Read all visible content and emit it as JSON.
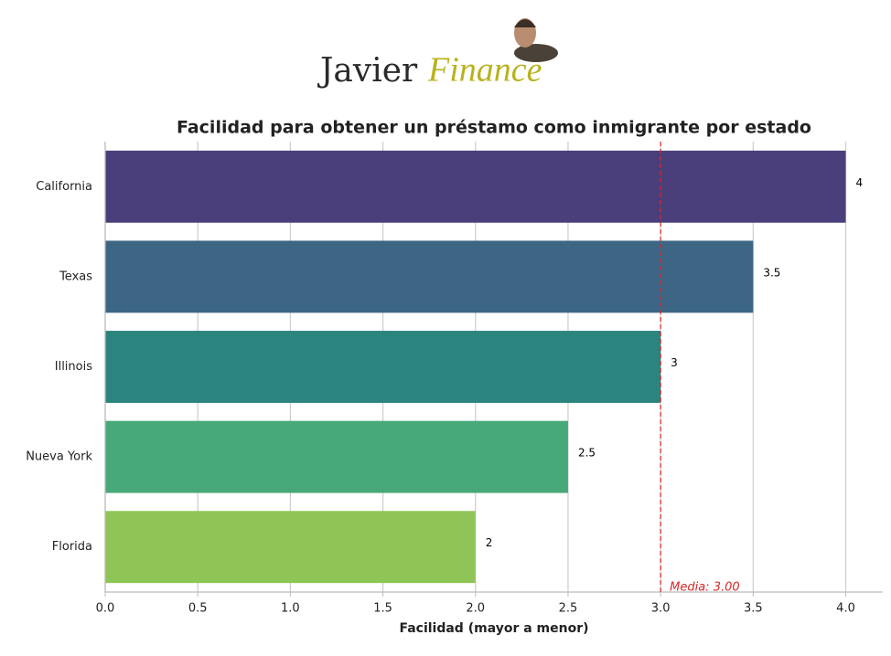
{
  "logo": {
    "first": "Javier",
    "second": "Finance"
  },
  "chart_data": {
    "type": "barh",
    "title": "Facilidad para obtener un préstamo como inmigrante por estado",
    "x_label": "Facilidad (mayor a menor)",
    "categories": [
      "California",
      "Texas",
      "Illinois",
      "Nueva York",
      "Florida"
    ],
    "values": [
      4,
      3.5,
      3,
      2.5,
      2
    ],
    "colors": [
      "#4a3f7b",
      "#3d6685",
      "#2c847e",
      "#47a978",
      "#8fc557"
    ],
    "xlim": [
      0,
      4.2
    ],
    "xticks": [
      {
        "value": 0,
        "label": "0.0"
      },
      {
        "value": 0.5,
        "label": "0.5"
      },
      {
        "value": 1,
        "label": "1.0"
      },
      {
        "value": 1.5,
        "label": "1.5"
      },
      {
        "value": 2,
        "label": "2.0"
      },
      {
        "value": 2.5,
        "label": "2.5"
      },
      {
        "value": 3,
        "label": "3.0"
      },
      {
        "value": 3.5,
        "label": "3.5"
      },
      {
        "value": 4,
        "label": "4.0"
      }
    ],
    "grid": true,
    "mean_line": {
      "value": 3,
      "label": "Media: 3.00",
      "color": "#d62728"
    }
  }
}
